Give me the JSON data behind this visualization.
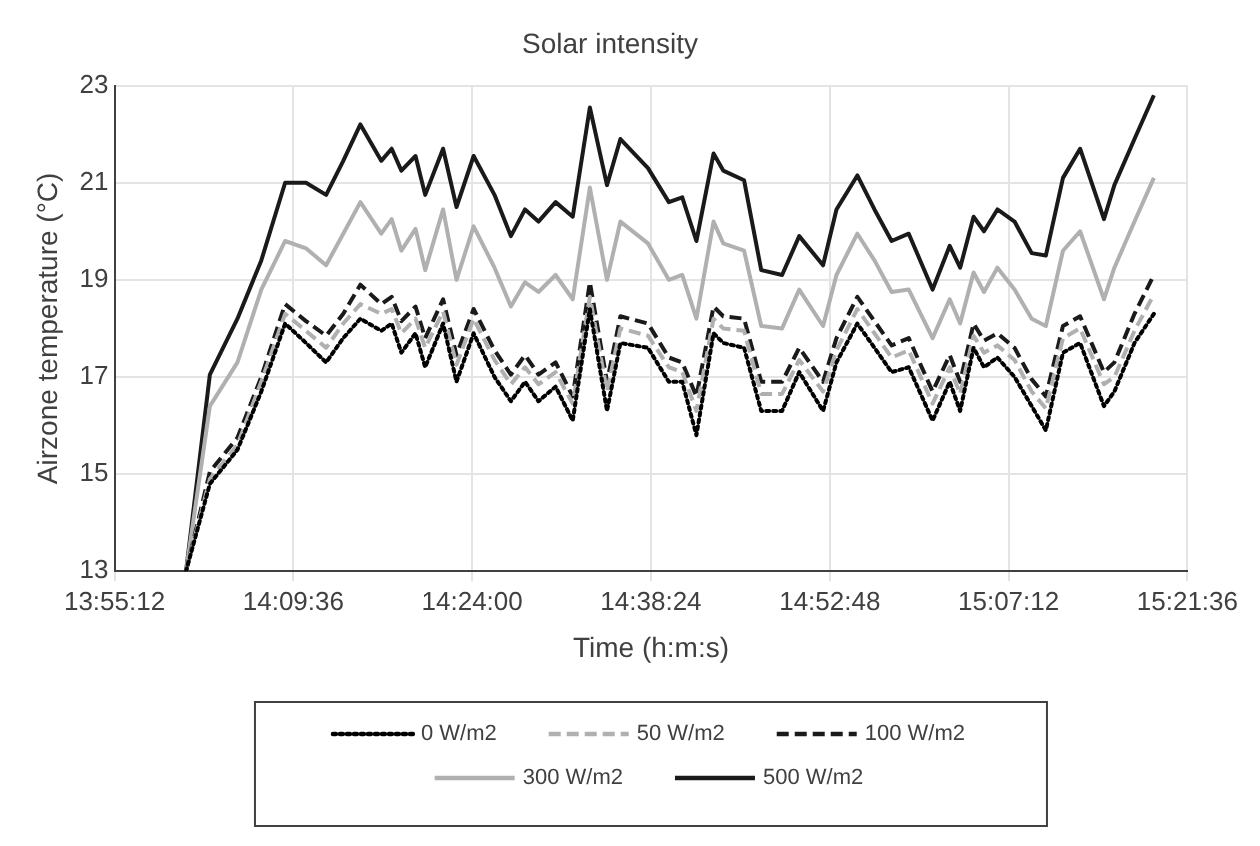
{
  "chart_data": {
    "type": "line",
    "title": "Solar intensity",
    "xlabel": "Time (h:m:s)",
    "ylabel": "Airzone temperature (°C)",
    "x": [
      14.016,
      14.048,
      14.085,
      14.117,
      14.149,
      14.177,
      14.204,
      14.227,
      14.25,
      14.278,
      14.292,
      14.305,
      14.324,
      14.337,
      14.361,
      14.379,
      14.402,
      14.43,
      14.452,
      14.471,
      14.489,
      14.512,
      14.535,
      14.558,
      14.581,
      14.599,
      14.636,
      14.664,
      14.682,
      14.701,
      14.724,
      14.737,
      14.765,
      14.788,
      14.816,
      14.839,
      14.871,
      14.889,
      14.917,
      14.94,
      14.963,
      14.986,
      15.018,
      15.041,
      15.055,
      15.073,
      15.087,
      15.105,
      15.128,
      15.151,
      15.17,
      15.193,
      15.216,
      15.248,
      15.262,
      15.289,
      15.315
    ],
    "series": [
      {
        "name": "0 W/m2",
        "color": "#000000",
        "line_style": "dotted",
        "values": [
          13,
          14.8,
          15.5,
          16.7,
          18.1,
          17.7,
          17.3,
          17.8,
          18.2,
          17.95,
          18.1,
          17.5,
          17.9,
          17.2,
          18.1,
          16.9,
          17.9,
          17.0,
          16.5,
          16.9,
          16.5,
          16.8,
          16.1,
          18.4,
          16.3,
          17.7,
          17.6,
          16.9,
          16.9,
          15.8,
          17.9,
          17.7,
          17.6,
          16.3,
          16.3,
          17.1,
          16.3,
          17.3,
          18.1,
          17.6,
          17.1,
          17.2,
          16.1,
          16.9,
          16.3,
          17.6,
          17.2,
          17.4,
          17.0,
          16.4,
          15.9,
          17.5,
          17.7,
          16.4,
          16.7,
          17.7,
          18.3
        ]
      },
      {
        "name": "50 W/m2",
        "color": "#b0b0b0",
        "line_style": "dashed",
        "values": [
          13,
          14.9,
          15.6,
          16.9,
          18.3,
          17.95,
          17.6,
          18.1,
          18.5,
          18.3,
          18.4,
          17.9,
          18.2,
          17.6,
          18.35,
          17.25,
          18.2,
          17.35,
          16.85,
          17.2,
          16.85,
          17.1,
          16.45,
          18.65,
          16.7,
          18.0,
          17.85,
          17.2,
          17.1,
          16.3,
          18.2,
          18.0,
          17.95,
          16.65,
          16.65,
          17.35,
          16.7,
          17.55,
          18.4,
          17.9,
          17.4,
          17.55,
          16.45,
          17.2,
          16.65,
          17.85,
          17.5,
          17.65,
          17.35,
          16.7,
          16.35,
          17.8,
          18.0,
          16.85,
          17.0,
          17.95,
          18.7
        ]
      },
      {
        "name": "100 W/m2",
        "color": "#1a1a1a",
        "line_style": "dashed",
        "values": [
          13,
          15.05,
          15.75,
          17.0,
          18.5,
          18.15,
          17.85,
          18.3,
          18.9,
          18.5,
          18.65,
          18.15,
          18.45,
          17.8,
          18.6,
          17.45,
          18.4,
          17.55,
          17.05,
          17.45,
          17.05,
          17.3,
          16.6,
          18.95,
          16.9,
          18.25,
          18.1,
          17.4,
          17.3,
          16.6,
          18.45,
          18.25,
          18.2,
          16.9,
          16.9,
          17.6,
          16.9,
          17.8,
          18.65,
          18.15,
          17.65,
          17.8,
          16.7,
          17.45,
          16.9,
          18.1,
          17.75,
          17.9,
          17.6,
          16.95,
          16.6,
          18.05,
          18.25,
          17.1,
          17.3,
          18.3,
          19.1
        ]
      },
      {
        "name": "300 W/m2",
        "color": "#b0b0b0",
        "line_style": "solid",
        "values": [
          13,
          16.4,
          17.3,
          18.8,
          19.8,
          19.65,
          19.3,
          19.95,
          20.6,
          19.95,
          20.25,
          19.6,
          20.05,
          19.2,
          20.45,
          19.0,
          20.1,
          19.25,
          18.45,
          18.95,
          18.75,
          19.1,
          18.6,
          20.9,
          19.0,
          20.2,
          19.75,
          19.0,
          19.1,
          18.2,
          20.2,
          19.75,
          19.6,
          18.05,
          18.0,
          18.8,
          18.05,
          19.1,
          19.95,
          19.4,
          18.75,
          18.8,
          17.8,
          18.6,
          18.1,
          19.15,
          18.75,
          19.25,
          18.8,
          18.2,
          18.05,
          19.6,
          20.0,
          18.6,
          19.25,
          20.2,
          21.1
        ]
      },
      {
        "name": "500 W/m2",
        "color": "#1a1a1a",
        "line_style": "solid",
        "values": [
          13,
          17.05,
          18.2,
          19.4,
          21.0,
          21.0,
          20.75,
          21.45,
          22.2,
          21.45,
          21.7,
          21.25,
          21.55,
          20.75,
          21.7,
          20.5,
          21.55,
          20.75,
          19.9,
          20.45,
          20.2,
          20.6,
          20.3,
          22.55,
          20.95,
          21.9,
          21.3,
          20.6,
          20.7,
          19.8,
          21.6,
          21.25,
          21.05,
          19.2,
          19.1,
          19.9,
          19.3,
          20.45,
          21.15,
          20.45,
          19.8,
          19.95,
          18.8,
          19.7,
          19.25,
          20.3,
          20.0,
          20.45,
          20.2,
          19.55,
          19.5,
          21.1,
          21.7,
          20.25,
          20.95,
          21.9,
          22.8
        ]
      }
    ],
    "xlim": [
      13.92,
      15.36
    ],
    "xticks": [
      {
        "value": 13.92,
        "label": "13:55:12"
      },
      {
        "value": 14.16,
        "label": "14:09:36"
      },
      {
        "value": 14.4,
        "label": "14:24:00"
      },
      {
        "value": 14.64,
        "label": "14:38:24"
      },
      {
        "value": 14.88,
        "label": "14:52:48"
      },
      {
        "value": 15.12,
        "label": "15:07:12"
      },
      {
        "value": 15.36,
        "label": "15:21:36"
      }
    ],
    "ylim": [
      13,
      23
    ],
    "yticks": [
      13,
      15,
      17,
      19,
      21,
      23
    ],
    "grid": true,
    "legend": "bottom",
    "marker": "none"
  }
}
